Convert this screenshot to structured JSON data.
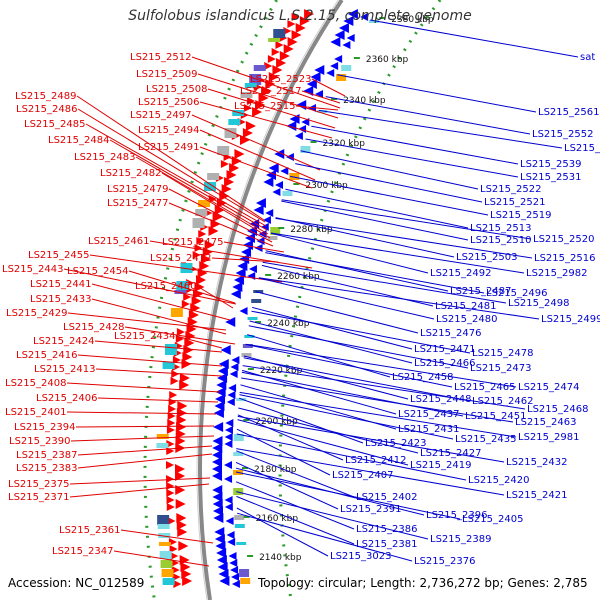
{
  "title": "Sulfolobus islandicus L.S.2.15, complete genome",
  "footer": {
    "accession": "Accession: NC_012589",
    "topology": "Topology: circular; Length: 2,736,272 bp; Genes: 2,785"
  },
  "colors": {
    "left_labels": "#e00000",
    "right_labels": "#0000d0",
    "backbone": "#888888",
    "dots": "#2a9a2a",
    "forward_arrows": "#ff0000",
    "reverse_arrows": "#0000ff",
    "cds_block": "#22c8d8"
  },
  "kbp_marks": [
    "2380 kbp",
    "2360 kbp",
    "2340 kbp",
    "2320 kbp",
    "2300 kbp",
    "2280 kbp",
    "2260 kbp",
    "2240 kbp",
    "2220 kbp",
    "2200 kbp",
    "2180 kbp",
    "2160 kbp",
    "2140 kbp"
  ],
  "left_labels": [
    "LS215_2512",
    "LS215_2509",
    "LS215_2523",
    "LS215_2508",
    "LS215_2517",
    "LS215_2506",
    "LS215_2515",
    "LS215_2489",
    "LS215_2486",
    "LS215_2497",
    "LS215_2485",
    "LS215_2494",
    "LS215_2484",
    "LS215_2491",
    "LS215_2483",
    "LS215_2482",
    "LS215_2479",
    "LS215_2477",
    "LS215_2461",
    "LS215_2475",
    "LS215_2455",
    "LS215_2472",
    "LS215_2443",
    "LS215_2454",
    "LS215_2441",
    "LS215_2460",
    "LS215_2433",
    "LS215_2429",
    "LS215_2428",
    "LS215_2434",
    "LS215_2424",
    "LS215_2416",
    "LS215_2413",
    "LS215_2408",
    "LS215_2406",
    "LS215_2401",
    "LS215_2394",
    "LS215_2390",
    "LS215_2387",
    "LS215_2383",
    "LS215_2375",
    "LS215_2371",
    "LS215_2361",
    "LS215_2347"
  ],
  "right_labels": [
    "sat",
    "LS215_2561",
    "LS215_2552",
    "LS215_2548",
    "LS215_2539",
    "LS215_2531",
    "LS215_2522",
    "LS215_2521",
    "LS215_2519",
    "LS215_2513",
    "LS215_2510",
    "LS215_2520",
    "LS215_2503",
    "LS215_2516",
    "LS215_2492",
    "LS215_2982",
    "LS215_2487",
    "LS215_2496",
    "LS215_2481",
    "LS215_2498",
    "LS215_2480",
    "LS215_2499",
    "LS215_2476",
    "LS215_2471",
    "LS215_2478",
    "LS215_2466",
    "LS215_2473",
    "LS215_2458",
    "LS215_2465",
    "LS215_2474",
    "LS215_2448",
    "LS215_2462",
    "LS215_2468",
    "LS215_2437",
    "LS215_2451",
    "LS215_2463",
    "LS215_2431",
    "LS215_2435",
    "LS215_2981",
    "LS215_2423",
    "LS215_2427",
    "LS215_2412",
    "LS215_2419",
    "LS215_2432",
    "LS215_2407",
    "LS215_2420",
    "LS215_2402",
    "LS215_2421",
    "LS215_2391",
    "LS215_2396",
    "LS215_2405",
    "LS215_2386",
    "LS215_2389",
    "LS215_2381",
    "LS215_2376",
    "LS215_3023"
  ]
}
